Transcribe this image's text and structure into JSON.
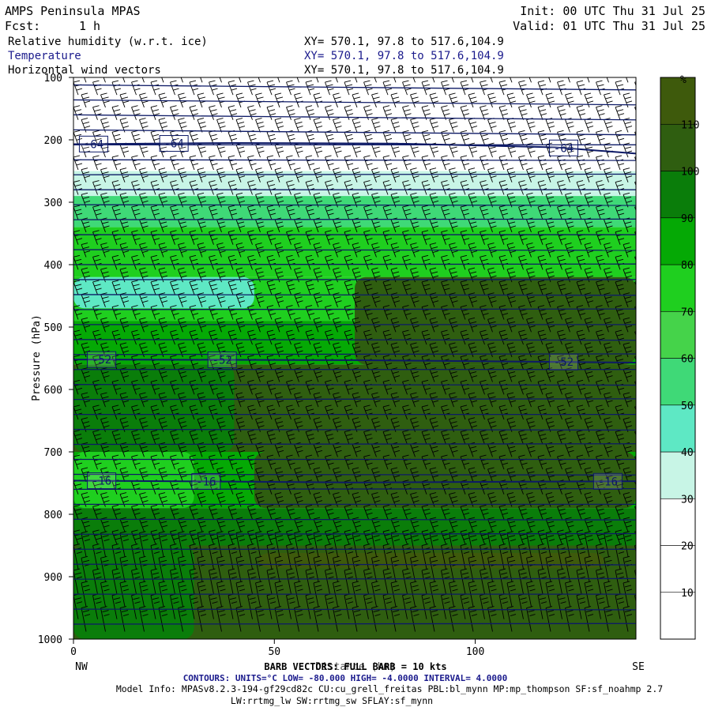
{
  "header": {
    "model": "AMPS Peninsula MPAS",
    "fcst_label": "Fcst:",
    "fcst_value": "1 h",
    "init": "Init: 00 UTC Thu 31 Jul 25",
    "valid": "Valid: 01 UTC Thu 31 Jul 25",
    "fields": [
      {
        "name": "Relative humidity (w.r.t. ice)",
        "xy": "XY= 570.1, 97.8 to 517.6,104.9",
        "color": "#000000"
      },
      {
        "name": "Temperature",
        "xy": "XY= 570.1, 97.8 to 517.6,104.9",
        "color": "#1a1a8c"
      },
      {
        "name": "Horizontal wind vectors",
        "xy": "XY= 570.1, 97.8 to 517.6,104.9",
        "color": "#000000"
      }
    ]
  },
  "footer": {
    "barb_note": "BARB VECTORS: FULL BARB = 10 kts",
    "contours": "CONTOURS: UNITS=°C LOW= -80.000 HIGH= -4.0000 INTERVAL= 4.0000",
    "model_info": "Model Info: MPASv8.2.3-194-gf29cd82c CU:cu_grell_freitas PBL:bl_mynn MP:mp_thompson SF:sf_noahmp 2.7",
    "model_info2": "LW:rrtmg_lw SW:rrtmg_sw SFLAY:sf_mynn"
  },
  "chart_data": {
    "type": "heatmap",
    "xlabel": "Distance (km)",
    "ylabel": "Pressure (hPa)",
    "xlim": [
      0,
      140
    ],
    "ylim": [
      1000,
      100
    ],
    "x_ticks": [
      0,
      50,
      100
    ],
    "y_ticks": [
      100,
      200,
      300,
      400,
      500,
      600,
      700,
      800,
      900,
      1000
    ],
    "x_end_labels": {
      "left": "NW",
      "right": "SE"
    },
    "colorbar": {
      "unit": "%",
      "levels": [
        0,
        10,
        20,
        30,
        40,
        50,
        60,
        70,
        80,
        90,
        100,
        110,
        120
      ],
      "tick_labels": [
        10,
        20,
        30,
        40,
        50,
        60,
        70,
        80,
        90,
        100,
        110
      ],
      "colors": [
        "#ffffff",
        "#ffffff",
        "#ffffff",
        "#c8f5e6",
        "#5ee8c4",
        "#3fd977",
        "#45d34a",
        "#1fcf1f",
        "#05a905",
        "#0a7d0a",
        "#2f5e10",
        "#3e5a0c",
        "#c41e05"
      ]
    },
    "rh_layers": [
      {
        "p_top": 100,
        "p_bot": 250,
        "value": 10
      },
      {
        "p_top": 250,
        "p_bot": 290,
        "value": 35
      },
      {
        "p_top": 290,
        "p_bot": 340,
        "value": 55
      },
      {
        "p_top": 340,
        "p_bot": 420,
        "value": 75
      },
      {
        "p_top": 420,
        "p_bot": 490,
        "value": 70
      },
      {
        "p_top": 490,
        "p_bot": 560,
        "value": 80
      },
      {
        "p_top": 560,
        "p_bot": 700,
        "value": 100
      },
      {
        "p_top": 700,
        "p_bot": 790,
        "value": 80
      },
      {
        "p_top": 790,
        "p_bot": 850,
        "value": 90
      },
      {
        "p_top": 850,
        "p_bot": 1000,
        "value": 105
      }
    ],
    "rh_patches": [
      {
        "x0": 0,
        "x1": 45,
        "p_top": 420,
        "p_bot": 470,
        "value": 40
      },
      {
        "x0": 70,
        "x1": 140,
        "p_top": 420,
        "p_bot": 560,
        "value": 100
      },
      {
        "x0": 0,
        "x1": 40,
        "p_top": 560,
        "p_bot": 700,
        "value": 90
      },
      {
        "x0": 45,
        "x1": 140,
        "p_top": 700,
        "p_bot": 790,
        "value": 100
      },
      {
        "x0": 0,
        "x1": 30,
        "p_top": 700,
        "p_bot": 790,
        "value": 75
      },
      {
        "x0": 0,
        "x1": 30,
        "p_top": 850,
        "p_bot": 1000,
        "value": 95
      },
      {
        "x0": 46,
        "x1": 132,
        "p_top": 862,
        "p_bot": 886,
        "value": 115
      }
    ],
    "temperature_contours": [
      {
        "label": "-64",
        "x": [
          0,
          40,
          80,
          120,
          140
        ],
        "p": [
          207,
          205,
          206,
          212,
          222
        ],
        "label_x": [
          5,
          25,
          122
        ]
      },
      {
        "label": "-52",
        "x": [
          0,
          70,
          140
        ],
        "p": [
          552,
          553,
          557
        ],
        "label_x": [
          7,
          37,
          122
        ]
      },
      {
        "label": "-16",
        "x": [
          0,
          70,
          140
        ],
        "p": [
          746,
          749,
          747
        ],
        "label_x": [
          7,
          33,
          133
        ]
      }
    ],
    "wind_barbs": {
      "full_barb_kts": 10
    }
  }
}
